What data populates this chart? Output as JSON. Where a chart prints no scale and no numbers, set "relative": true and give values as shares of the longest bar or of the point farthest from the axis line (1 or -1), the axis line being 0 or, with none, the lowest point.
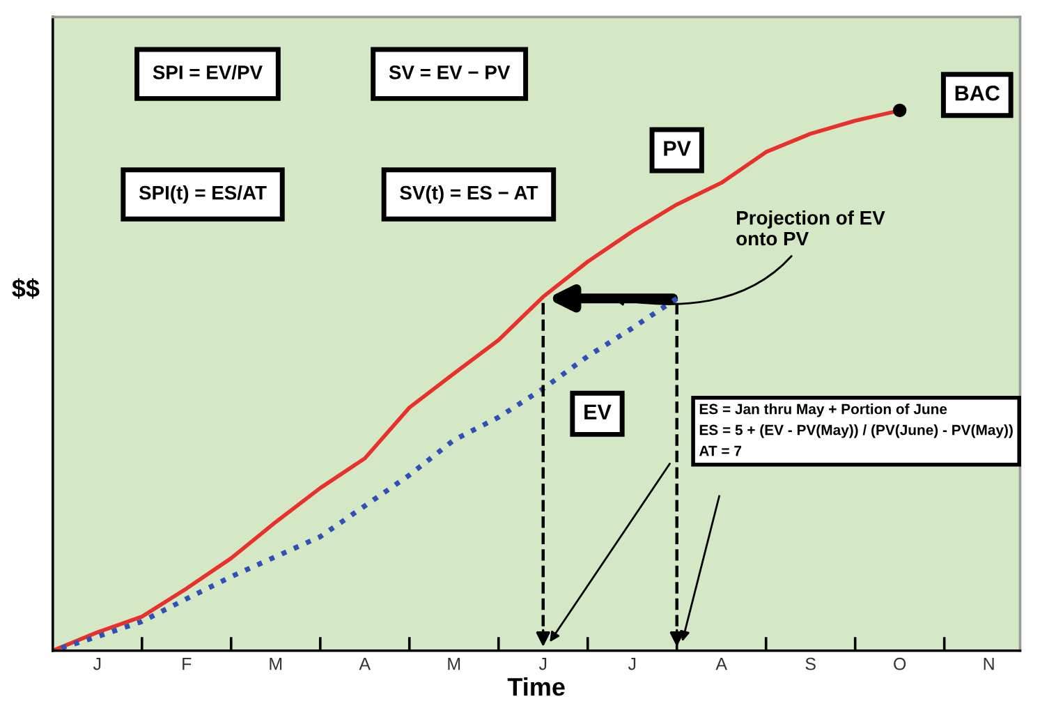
{
  "chart_data": {
    "type": "line",
    "relative": true,
    "xlabel": "Time",
    "ylabel": "$$",
    "categories": [
      null,
      "J",
      null,
      "F",
      null,
      "M",
      null,
      "A",
      null,
      "M",
      null,
      "J",
      null,
      "J",
      null,
      "A",
      null,
      "S",
      null,
      "O",
      null,
      "N"
    ],
    "series": [
      {
        "name": "PV",
        "color": "#e8312a",
        "line_style": "solid",
        "values": [
          0,
          0.034,
          0.063,
          0.115,
          0.171,
          0.238,
          0.301,
          0.356,
          0.45,
          0.513,
          0.575,
          0.655,
          0.72,
          0.776,
          0.826,
          0.866,
          0.923,
          0.957,
          0.981,
          1.0,
          null,
          null
        ]
      },
      {
        "name": "EV",
        "color": "#3050b8",
        "line_style": "dotted",
        "values": [
          0,
          0.026,
          0.054,
          0.096,
          0.137,
          0.174,
          0.211,
          0.268,
          0.325,
          0.39,
          0.432,
          0.485,
          0.545,
          0.597,
          0.652,
          null,
          null,
          null,
          null,
          null,
          null,
          null
        ]
      }
    ],
    "annotations": [
      "SPI = EV/PV",
      "SV = EV − PV",
      "SPI(t) = ES/AT",
      "SV(t) = ES − AT",
      {
        "text": "BAC",
        "x": "O",
        "y": 1.0
      },
      "Projection of EV\nonto PV",
      "ES = Jan thru May + Portion of June\nES = 5 + (EV - PV(May)) / (PV(June) - PV(May))\nAT = 7"
    ]
  }
}
